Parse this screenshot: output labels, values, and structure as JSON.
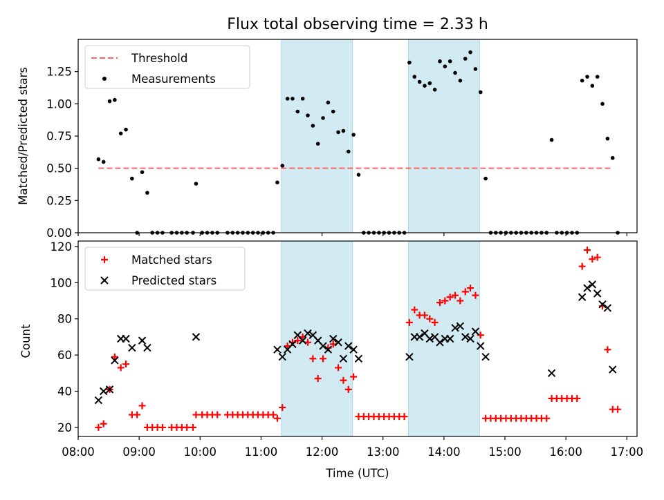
{
  "chart_data": [
    {
      "type": "scatter",
      "title": "Flux total observing time = 2.33 h",
      "ylabel": "Matched/Predicted stars",
      "xlabel": "",
      "xlim": [
        "08:00",
        "17:10"
      ],
      "ylim": [
        0,
        1.5
      ],
      "yticks": [
        "0.00",
        "0.25",
        "0.50",
        "0.75",
        "1.00",
        "1.25"
      ],
      "shaded_intervals": [
        [
          "11:20",
          "12:30"
        ],
        [
          "13:25",
          "14:35"
        ]
      ],
      "shade_color": "#add8e6",
      "legend": {
        "placement": "top-left",
        "entries": [
          "Threshold",
          "Measurements"
        ]
      },
      "threshold": {
        "name": "Threshold",
        "value": 0.5,
        "x_range": [
          "08:20",
          "16:45"
        ],
        "color": "#ff6666",
        "style": "dashed"
      },
      "series": [
        {
          "name": "Measurements",
          "color": "#000000",
          "points": [
            [
              "08:20",
              0.57
            ],
            [
              "08:25",
              0.55
            ],
            [
              "08:31",
              1.02
            ],
            [
              "08:36",
              1.03
            ],
            [
              "08:42",
              0.77
            ],
            [
              "08:47",
              0.8
            ],
            [
              "08:53",
              0.42
            ],
            [
              "08:58",
              0.0
            ],
            [
              "09:03",
              0.47
            ],
            [
              "09:08",
              0.31
            ],
            [
              "09:13",
              0.0
            ],
            [
              "09:18",
              0.0
            ],
            [
              "09:23",
              0.0
            ],
            [
              "09:32",
              0.0
            ],
            [
              "09:37",
              0.0
            ],
            [
              "09:42",
              0.0
            ],
            [
              "09:47",
              0.0
            ],
            [
              "09:53",
              0.0
            ],
            [
              "09:56",
              0.38
            ],
            [
              "10:02",
              0.0
            ],
            [
              "10:07",
              0.0
            ],
            [
              "10:12",
              0.0
            ],
            [
              "10:17",
              0.0
            ],
            [
              "10:27",
              0.0
            ],
            [
              "10:32",
              0.0
            ],
            [
              "10:37",
              0.0
            ],
            [
              "10:42",
              0.0
            ],
            [
              "10:47",
              0.0
            ],
            [
              "10:52",
              0.0
            ],
            [
              "10:57",
              0.0
            ],
            [
              "11:02",
              0.0
            ],
            [
              "11:07",
              0.0
            ],
            [
              "11:12",
              0.0
            ],
            [
              "11:16",
              0.39
            ],
            [
              "11:21",
              0.52
            ],
            [
              "11:26",
              1.04
            ],
            [
              "11:31",
              1.04
            ],
            [
              "11:36",
              0.94
            ],
            [
              "11:41",
              1.04
            ],
            [
              "11:46",
              0.91
            ],
            [
              "11:51",
              0.83
            ],
            [
              "11:56",
              0.69
            ],
            [
              "12:01",
              0.89
            ],
            [
              "12:06",
              1.01
            ],
            [
              "12:11",
              0.94
            ],
            [
              "12:16",
              0.78
            ],
            [
              "12:21",
              0.79
            ],
            [
              "12:26",
              0.63
            ],
            [
              "12:31",
              0.76
            ],
            [
              "12:36",
              0.45
            ],
            [
              "12:41",
              0.0
            ],
            [
              "12:46",
              0.0
            ],
            [
              "12:51",
              0.0
            ],
            [
              "12:56",
              0.0
            ],
            [
              "13:01",
              0.0
            ],
            [
              "13:06",
              0.0
            ],
            [
              "13:11",
              0.0
            ],
            [
              "13:16",
              0.0
            ],
            [
              "13:21",
              0.0
            ],
            [
              "13:26",
              1.32
            ],
            [
              "13:31",
              1.21
            ],
            [
              "13:36",
              1.17
            ],
            [
              "13:41",
              1.14
            ],
            [
              "13:46",
              1.16
            ],
            [
              "13:51",
              1.11
            ],
            [
              "13:56",
              1.33
            ],
            [
              "14:01",
              1.29
            ],
            [
              "14:06",
              1.33
            ],
            [
              "14:11",
              1.24
            ],
            [
              "14:16",
              1.18
            ],
            [
              "14:21",
              1.35
            ],
            [
              "14:26",
              1.4
            ],
            [
              "14:31",
              1.27
            ],
            [
              "14:36",
              1.09
            ],
            [
              "14:41",
              0.42
            ],
            [
              "14:46",
              0.0
            ],
            [
              "14:51",
              0.0
            ],
            [
              "14:56",
              0.0
            ],
            [
              "15:01",
              0.0
            ],
            [
              "15:06",
              0.0
            ],
            [
              "15:11",
              0.0
            ],
            [
              "15:16",
              0.0
            ],
            [
              "15:21",
              0.0
            ],
            [
              "15:26",
              0.0
            ],
            [
              "15:31",
              0.0
            ],
            [
              "15:36",
              0.0
            ],
            [
              "15:41",
              0.0
            ],
            [
              "15:46",
              0.72
            ],
            [
              "15:51",
              0.0
            ],
            [
              "15:56",
              0.0
            ],
            [
              "16:01",
              0.0
            ],
            [
              "16:06",
              0.0
            ],
            [
              "16:11",
              0.0
            ],
            [
              "16:16",
              1.18
            ],
            [
              "16:21",
              1.21
            ],
            [
              "16:26",
              1.14
            ],
            [
              "16:31",
              1.21
            ],
            [
              "16:36",
              1.0
            ],
            [
              "16:41",
              0.73
            ],
            [
              "16:46",
              0.58
            ],
            [
              "16:51",
              0.0
            ]
          ]
        }
      ]
    },
    {
      "type": "scatter",
      "title": "",
      "xlabel": "Time (UTC)",
      "ylabel": "Count",
      "xlim": [
        "08:00",
        "17:10"
      ],
      "ylim": [
        15,
        123
      ],
      "xticks": [
        "08:00",
        "09:00",
        "10:00",
        "11:00",
        "12:00",
        "13:00",
        "14:00",
        "15:00",
        "16:00",
        "17:00"
      ],
      "yticks": [
        "20",
        "40",
        "60",
        "80",
        "100",
        "120"
      ],
      "shaded_intervals": [
        [
          "11:20",
          "12:30"
        ],
        [
          "13:25",
          "14:35"
        ]
      ],
      "shade_color": "#add8e6",
      "legend": {
        "placement": "top-left",
        "entries": [
          "Matched stars",
          "Predicted stars"
        ]
      },
      "series": [
        {
          "name": "Matched stars",
          "marker": "+",
          "color": "#ff0000",
          "points": [
            [
              "08:20",
              20
            ],
            [
              "08:25",
              22
            ],
            [
              "08:31",
              41
            ],
            [
              "08:36",
              59
            ],
            [
              "08:42",
              53
            ],
            [
              "08:47",
              55
            ],
            [
              "08:53",
              27
            ],
            [
              "08:58",
              27
            ],
            [
              "09:03",
              32
            ],
            [
              "09:08",
              20
            ],
            [
              "09:13",
              20
            ],
            [
              "09:18",
              20
            ],
            [
              "09:23",
              20
            ],
            [
              "09:32",
              20
            ],
            [
              "09:37",
              20
            ],
            [
              "09:42",
              20
            ],
            [
              "09:47",
              20
            ],
            [
              "09:53",
              20
            ],
            [
              "09:56",
              27
            ],
            [
              "10:02",
              27
            ],
            [
              "10:07",
              27
            ],
            [
              "10:12",
              27
            ],
            [
              "10:17",
              27
            ],
            [
              "10:27",
              27
            ],
            [
              "10:32",
              27
            ],
            [
              "10:37",
              27
            ],
            [
              "10:42",
              27
            ],
            [
              "10:47",
              27
            ],
            [
              "10:52",
              27
            ],
            [
              "10:57",
              27
            ],
            [
              "11:02",
              27
            ],
            [
              "11:07",
              27
            ],
            [
              "11:12",
              27
            ],
            [
              "11:16",
              25
            ],
            [
              "11:21",
              31
            ],
            [
              "11:26",
              65
            ],
            [
              "11:31",
              67
            ],
            [
              "11:36",
              68
            ],
            [
              "11:41",
              70
            ],
            [
              "11:46",
              67
            ],
            [
              "11:51",
              58
            ],
            [
              "11:56",
              47
            ],
            [
              "12:01",
              58
            ],
            [
              "12:06",
              64
            ],
            [
              "12:11",
              66
            ],
            [
              "12:16",
              53
            ],
            [
              "12:21",
              46
            ],
            [
              "12:26",
              41
            ],
            [
              "12:31",
              48
            ],
            [
              "12:36",
              26
            ],
            [
              "12:41",
              26
            ],
            [
              "12:46",
              26
            ],
            [
              "12:51",
              26
            ],
            [
              "12:56",
              26
            ],
            [
              "13:01",
              26
            ],
            [
              "13:06",
              26
            ],
            [
              "13:11",
              26
            ],
            [
              "13:16",
              26
            ],
            [
              "13:21",
              26
            ],
            [
              "13:26",
              78
            ],
            [
              "13:31",
              85
            ],
            [
              "13:36",
              82
            ],
            [
              "13:41",
              82
            ],
            [
              "13:46",
              80
            ],
            [
              "13:51",
              78
            ],
            [
              "13:56",
              89
            ],
            [
              "14:01",
              90
            ],
            [
              "14:06",
              92
            ],
            [
              "14:11",
              93
            ],
            [
              "14:16",
              90
            ],
            [
              "14:21",
              95
            ],
            [
              "14:26",
              97
            ],
            [
              "14:31",
              93
            ],
            [
              "14:36",
              71
            ],
            [
              "14:41",
              25
            ],
            [
              "14:46",
              25
            ],
            [
              "14:51",
              25
            ],
            [
              "14:56",
              25
            ],
            [
              "15:01",
              25
            ],
            [
              "15:06",
              25
            ],
            [
              "15:11",
              25
            ],
            [
              "15:16",
              25
            ],
            [
              "15:21",
              25
            ],
            [
              "15:26",
              25
            ],
            [
              "15:31",
              25
            ],
            [
              "15:36",
              25
            ],
            [
              "15:41",
              25
            ],
            [
              "15:46",
              36
            ],
            [
              "15:51",
              36
            ],
            [
              "15:56",
              36
            ],
            [
              "16:01",
              36
            ],
            [
              "16:06",
              36
            ],
            [
              "16:11",
              36
            ],
            [
              "16:16",
              109
            ],
            [
              "16:21",
              118
            ],
            [
              "16:26",
              113
            ],
            [
              "16:31",
              114
            ],
            [
              "16:36",
              87
            ],
            [
              "16:41",
              63
            ],
            [
              "16:46",
              30
            ],
            [
              "16:51",
              30
            ]
          ]
        },
        {
          "name": "Predicted stars",
          "marker": "x",
          "color": "#000000",
          "points": [
            [
              "08:20",
              35
            ],
            [
              "08:25",
              40
            ],
            [
              "08:31",
              41
            ],
            [
              "08:36",
              57
            ],
            [
              "08:42",
              69
            ],
            [
              "08:47",
              69
            ],
            [
              "08:53",
              64
            ],
            [
              "09:03",
              68
            ],
            [
              "09:08",
              64
            ],
            [
              "09:56",
              70
            ],
            [
              "11:16",
              63
            ],
            [
              "11:21",
              59
            ],
            [
              "11:26",
              63
            ],
            [
              "11:31",
              66
            ],
            [
              "11:36",
              71
            ],
            [
              "11:41",
              68
            ],
            [
              "11:46",
              72
            ],
            [
              "11:51",
              71
            ],
            [
              "11:56",
              68
            ],
            [
              "12:01",
              65
            ],
            [
              "12:06",
              63
            ],
            [
              "12:11",
              69
            ],
            [
              "12:16",
              67
            ],
            [
              "12:21",
              58
            ],
            [
              "12:26",
              65
            ],
            [
              "12:31",
              63
            ],
            [
              "12:36",
              58
            ],
            [
              "13:26",
              59
            ],
            [
              "13:31",
              70
            ],
            [
              "13:36",
              70
            ],
            [
              "13:41",
              72
            ],
            [
              "13:46",
              69
            ],
            [
              "13:51",
              70
            ],
            [
              "13:56",
              67
            ],
            [
              "14:01",
              69
            ],
            [
              "14:06",
              69
            ],
            [
              "14:11",
              75
            ],
            [
              "14:16",
              76
            ],
            [
              "14:21",
              70
            ],
            [
              "14:26",
              69
            ],
            [
              "14:31",
              73
            ],
            [
              "14:36",
              65
            ],
            [
              "14:41",
              59
            ],
            [
              "15:46",
              50
            ],
            [
              "16:16",
              92
            ],
            [
              "16:21",
              97
            ],
            [
              "16:26",
              99
            ],
            [
              "16:31",
              94
            ],
            [
              "16:36",
              88
            ],
            [
              "16:41",
              86
            ],
            [
              "16:46",
              52
            ]
          ]
        }
      ]
    }
  ]
}
